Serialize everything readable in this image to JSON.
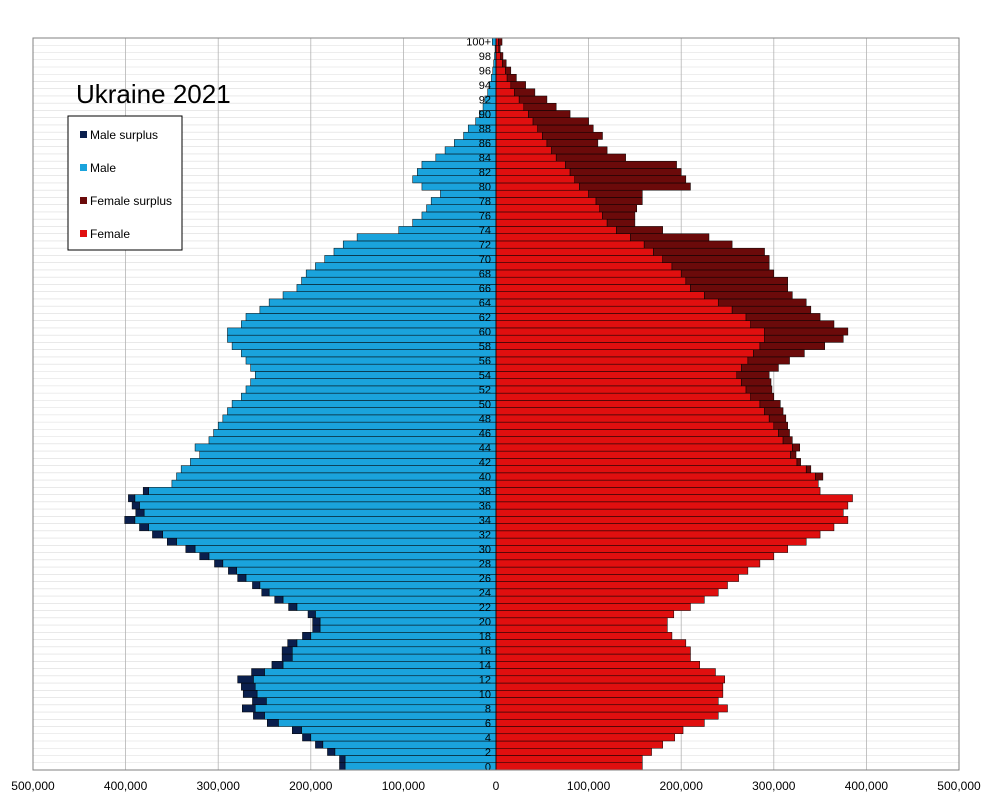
{
  "chart_data": {
    "type": "bar",
    "title": "Ukraine 2021",
    "x_tick_labels": [
      "500,000",
      "400,000",
      "300,000",
      "200,000",
      "100,000",
      "0",
      "100,000",
      "200,000",
      "300,000",
      "400,000",
      "500,000"
    ],
    "xlim": [
      -500000,
      500000
    ],
    "ages": [
      0,
      1,
      2,
      3,
      4,
      5,
      6,
      7,
      8,
      9,
      10,
      11,
      12,
      13,
      14,
      15,
      16,
      17,
      18,
      19,
      20,
      21,
      22,
      23,
      24,
      25,
      26,
      27,
      28,
      29,
      30,
      31,
      32,
      33,
      34,
      35,
      36,
      37,
      38,
      39,
      40,
      41,
      42,
      43,
      44,
      45,
      46,
      47,
      48,
      49,
      50,
      51,
      52,
      53,
      54,
      55,
      56,
      57,
      58,
      59,
      60,
      61,
      62,
      63,
      64,
      65,
      66,
      67,
      68,
      69,
      70,
      71,
      72,
      73,
      74,
      75,
      76,
      77,
      78,
      79,
      80,
      81,
      82,
      83,
      84,
      85,
      86,
      87,
      88,
      89,
      90,
      91,
      92,
      93,
      94,
      95,
      96,
      97,
      98,
      99,
      100
    ],
    "age_labels": [
      "0",
      "2",
      "4",
      "6",
      "8",
      "10",
      "12",
      "14",
      "16",
      "18",
      "20",
      "22",
      "24",
      "26",
      "28",
      "30",
      "32",
      "34",
      "36",
      "38",
      "40",
      "42",
      "44",
      "46",
      "48",
      "50",
      "52",
      "54",
      "56",
      "58",
      "60",
      "62",
      "64",
      "66",
      "68",
      "70",
      "72",
      "74",
      "76",
      "78",
      "80",
      "82",
      "84",
      "86",
      "88",
      "90",
      "92",
      "94",
      "96",
      "98",
      "100+"
    ],
    "series": [
      {
        "name": "Male surplus",
        "color": "#0a1f4d"
      },
      {
        "name": "Male",
        "color": "#1aa3dc"
      },
      {
        "name": "Female surplus",
        "color": "#6b0a0a"
      },
      {
        "name": "Female",
        "color": "#e00f0f"
      }
    ],
    "male": [
      163000,
      163000,
      174000,
      187000,
      200000,
      210000,
      235000,
      250000,
      260000,
      248000,
      258000,
      260000,
      262000,
      250000,
      230000,
      220000,
      220000,
      215000,
      200000,
      190000,
      190000,
      195000,
      215000,
      230000,
      245000,
      255000,
      270000,
      280000,
      295000,
      310000,
      325000,
      345000,
      360000,
      375000,
      390000,
      380000,
      385000,
      390000,
      375000,
      350000,
      345000,
      340000,
      330000,
      320000,
      325000,
      310000,
      305000,
      300000,
      295000,
      290000,
      285000,
      275000,
      270000,
      265000,
      260000,
      265000,
      270000,
      275000,
      285000,
      290000,
      290000,
      275000,
      270000,
      255000,
      245000,
      230000,
      215000,
      210000,
      205000,
      195000,
      185000,
      175000,
      165000,
      150000,
      105000,
      90000,
      80000,
      75000,
      70000,
      60000,
      80000,
      90000,
      85000,
      80000,
      65000,
      55000,
      45000,
      35000,
      30000,
      22000,
      18000,
      14000,
      12000,
      9000,
      7000,
      5000,
      3500,
      2500,
      1600,
      1000,
      4000
    ],
    "female": [
      158000,
      158000,
      168000,
      180000,
      193000,
      202000,
      225000,
      240000,
      250000,
      240000,
      245000,
      245000,
      247000,
      237000,
      220000,
      210000,
      210000,
      205000,
      190000,
      185000,
      185000,
      192000,
      210000,
      225000,
      240000,
      250000,
      262000,
      272000,
      285000,
      300000,
      315000,
      335000,
      350000,
      365000,
      380000,
      375000,
      380000,
      385000,
      350000,
      348000,
      345000,
      335000,
      325000,
      318000,
      320000,
      310000,
      305000,
      300000,
      295000,
      290000,
      285000,
      275000,
      270000,
      265000,
      260000,
      265000,
      272000,
      278000,
      285000,
      290000,
      290000,
      275000,
      270000,
      255000,
      240000,
      225000,
      210000,
      205000,
      200000,
      190000,
      180000,
      170000,
      160000,
      145000,
      130000,
      120000,
      115000,
      112000,
      108000,
      100000,
      90000,
      85000,
      80000,
      75000,
      65000,
      60000,
      55000,
      50000,
      45000,
      40000,
      35000,
      30000,
      25000,
      20000,
      16000,
      12000,
      10000,
      7000,
      5000,
      3000,
      2500
    ],
    "male_surplus": [
      6000,
      6000,
      8000,
      8000,
      9000,
      10000,
      12000,
      12000,
      14000,
      15000,
      15000,
      15000,
      17000,
      14000,
      12000,
      11000,
      11000,
      10000,
      9000,
      8000,
      8000,
      8000,
      9000,
      9000,
      8000,
      8000,
      9000,
      9000,
      9000,
      10000,
      10000,
      10000,
      11000,
      10000,
      11000,
      9000,
      8000,
      7000,
      6000,
      0,
      0,
      0,
      0,
      0,
      0,
      0,
      0,
      0,
      0,
      0,
      0,
      0,
      0,
      0,
      0,
      0,
      0,
      0,
      0,
      0,
      0,
      0,
      0,
      0,
      0,
      0,
      0,
      0,
      0,
      0,
      0,
      0,
      0,
      0,
      0,
      0,
      0,
      0,
      0,
      0,
      0,
      0,
      0,
      0,
      0,
      0,
      0,
      0,
      0,
      0,
      0,
      0,
      0,
      0,
      0,
      0,
      0,
      0,
      0,
      0,
      0
    ],
    "female_surplus": [
      0,
      0,
      0,
      0,
      0,
      0,
      0,
      0,
      0,
      0,
      0,
      0,
      0,
      0,
      0,
      0,
      0,
      0,
      0,
      0,
      0,
      0,
      0,
      0,
      0,
      0,
      0,
      0,
      0,
      0,
      0,
      0,
      0,
      0,
      0,
      0,
      0,
      0,
      0,
      0,
      8000,
      5000,
      4000,
      6000,
      8000,
      10000,
      12000,
      15000,
      18000,
      20000,
      22000,
      25000,
      28000,
      32000,
      35000,
      40000,
      45000,
      55000,
      70000,
      85000,
      90000,
      90000,
      80000,
      85000,
      95000,
      95000,
      105000,
      110000,
      100000,
      105000,
      115000,
      120000,
      95000,
      85000,
      50000,
      30000,
      35000,
      40000,
      50000,
      58000,
      120000,
      120000,
      120000,
      120000,
      75000,
      60000,
      55000,
      65000,
      60000,
      60000,
      45000,
      35000,
      30000,
      22000,
      16000,
      10000,
      6000,
      4000,
      2500,
      1500,
      4000
    ]
  }
}
